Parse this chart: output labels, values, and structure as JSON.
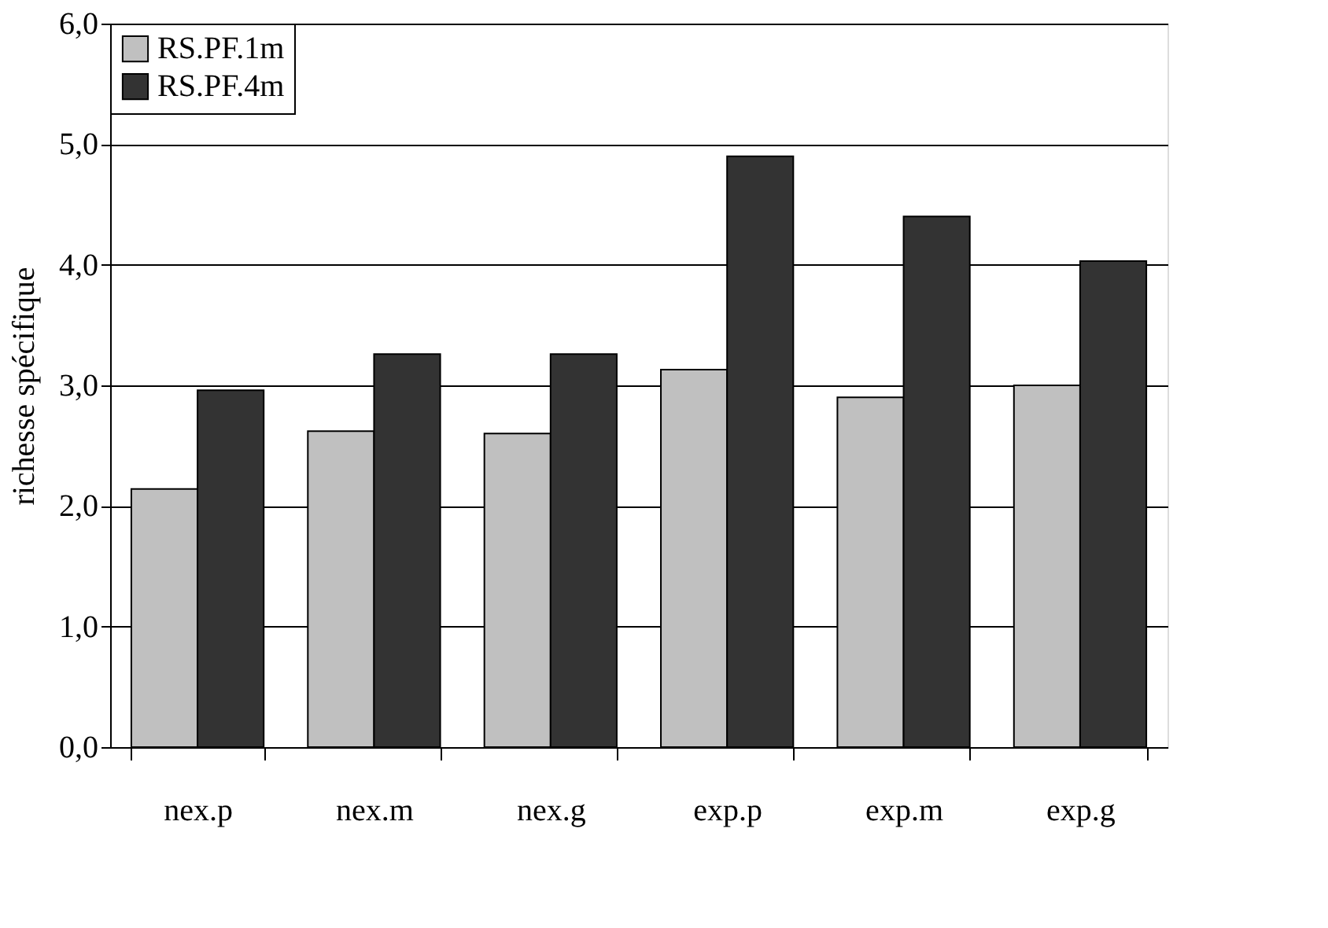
{
  "chart_data": {
    "type": "bar",
    "ylabel": "richesse spécifique",
    "categories": [
      "nex.p",
      "nex.m",
      "nex.g",
      "exp.p",
      "exp.m",
      "exp.g"
    ],
    "series": [
      {
        "name": "RS.PF.1m",
        "color": "#c0c0c0",
        "values": [
          2.14,
          2.62,
          2.6,
          3.13,
          2.9,
          3.0
        ]
      },
      {
        "name": "RS.PF.4m",
        "color": "#333333",
        "values": [
          2.96,
          3.26,
          3.26,
          4.9,
          4.4,
          4.03
        ]
      }
    ],
    "ylim": [
      0,
      6
    ],
    "yticks": [
      {
        "value": 0,
        "label": "0,0"
      },
      {
        "value": 1,
        "label": "1,0"
      },
      {
        "value": 2,
        "label": "2,0"
      },
      {
        "value": 3,
        "label": "3,0"
      },
      {
        "value": 4,
        "label": "4,0"
      },
      {
        "value": 5,
        "label": "5,0"
      },
      {
        "value": 6,
        "label": "6,0"
      }
    ],
    "grid": "y",
    "legend": "top left"
  }
}
